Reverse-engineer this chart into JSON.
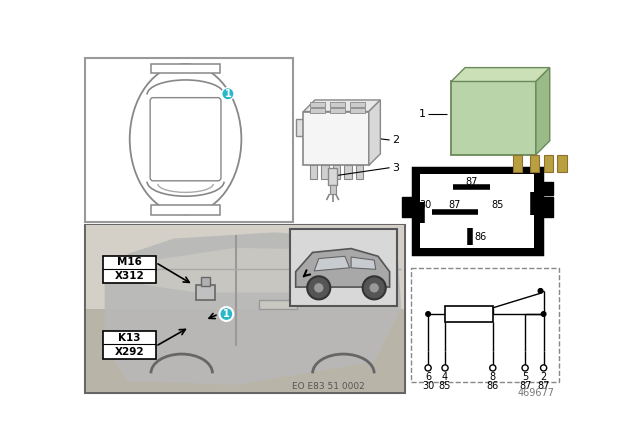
{
  "bg_color": "#ffffff",
  "teal": "#2ab7ca",
  "green_relay": "#b8d4a8",
  "green_relay_dark": "#8faf78",
  "green_relay_side": "#9aba88",
  "black": "#000000",
  "gray_light": "#cccccc",
  "gray_med": "#aaaaaa",
  "gray_dark": "#888888",
  "eo_text": "EO E83 51 0002",
  "part_num": "469677",
  "pin_top": [
    "6",
    "4",
    "8",
    "5",
    "2"
  ],
  "pin_bot": [
    "30",
    "85",
    "86",
    "87",
    "87"
  ]
}
